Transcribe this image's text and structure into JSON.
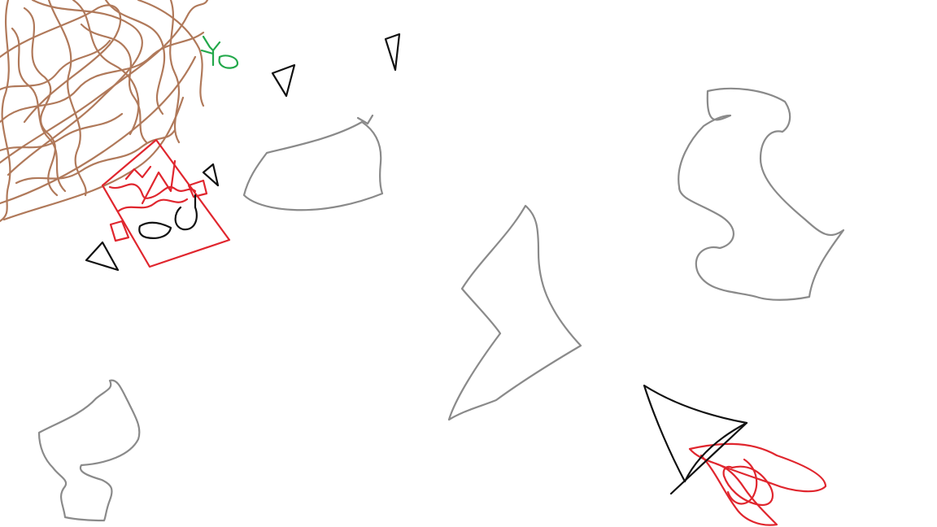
{
  "canvas": {
    "background": "#ffffff"
  },
  "palette": {
    "brown": "#b0795a",
    "red": "#e0262e",
    "black": "#111111",
    "gray": "#8a8a8a",
    "green": "#22a84a"
  },
  "objects": [
    {
      "name": "brown-scribble",
      "kind": "terrain",
      "color": "brown"
    },
    {
      "name": "green-sprout",
      "kind": "plant",
      "color": "green"
    },
    {
      "name": "red-spaceship",
      "kind": "player-ship",
      "color": "red"
    },
    {
      "name": "black-triangle-1",
      "kind": "enemy",
      "color": "black"
    },
    {
      "name": "black-triangle-2",
      "kind": "enemy",
      "color": "black"
    },
    {
      "name": "black-triangle-3",
      "kind": "enemy",
      "color": "black"
    },
    {
      "name": "black-triangle-4",
      "kind": "enemy",
      "color": "black"
    },
    {
      "name": "gray-asteroid-1",
      "kind": "asteroid",
      "color": "gray"
    },
    {
      "name": "gray-asteroid-2",
      "kind": "asteroid",
      "color": "gray"
    },
    {
      "name": "gray-asteroid-3",
      "kind": "asteroid",
      "color": "gray"
    },
    {
      "name": "gray-asteroid-4",
      "kind": "asteroid",
      "color": "gray"
    },
    {
      "name": "rocket-with-flames",
      "kind": "rocket",
      "color": "black"
    }
  ]
}
